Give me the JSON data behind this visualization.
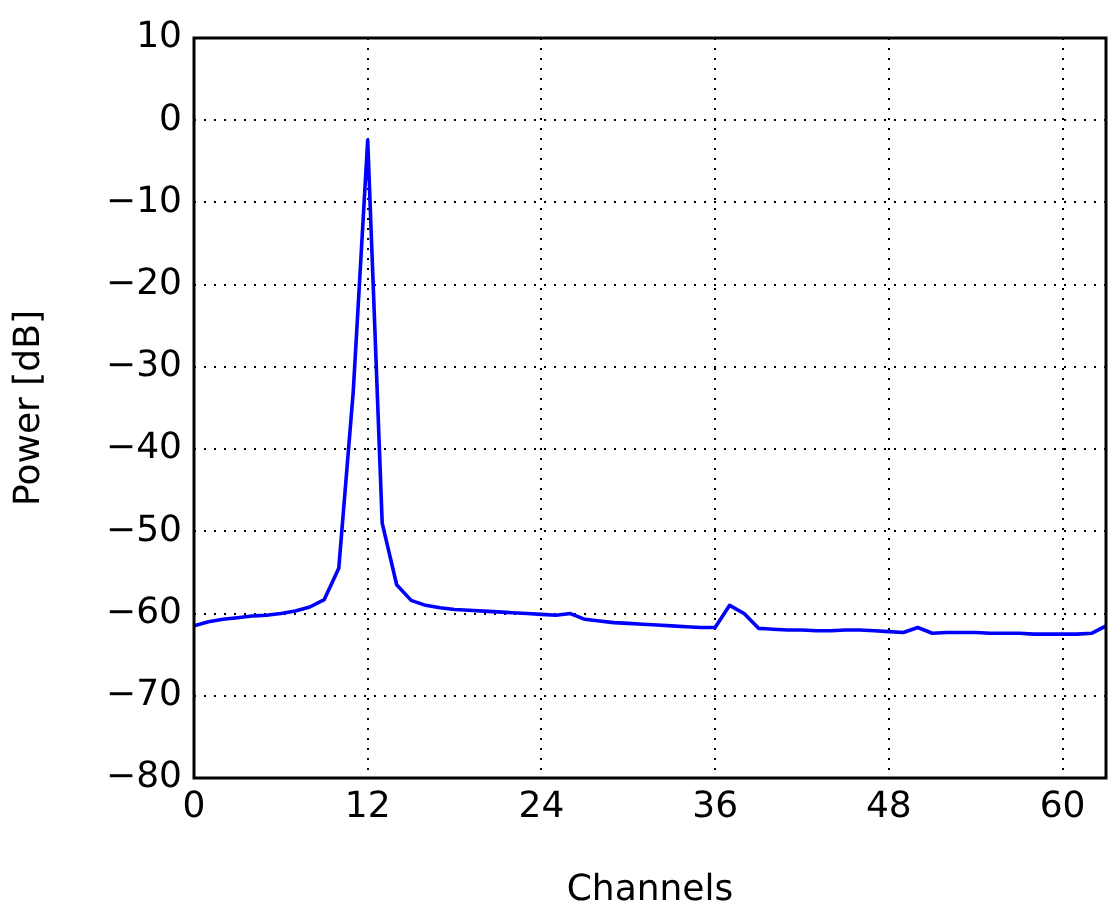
{
  "chart_data": {
    "type": "line",
    "xlabel": "Channels",
    "ylabel": "Power [dB]",
    "x": [
      0,
      1,
      2,
      3,
      4,
      5,
      6,
      7,
      8,
      9,
      10,
      11,
      12,
      13,
      14,
      15,
      16,
      17,
      18,
      19,
      20,
      21,
      22,
      23,
      24,
      25,
      26,
      27,
      28,
      29,
      30,
      31,
      32,
      33,
      34,
      35,
      36,
      37,
      38,
      39,
      40,
      41,
      42,
      43,
      44,
      45,
      46,
      47,
      48,
      49,
      50,
      51,
      52,
      53,
      54,
      55,
      56,
      57,
      58,
      59,
      60,
      61,
      62,
      63
    ],
    "series": [
      {
        "color": "#0000ff",
        "values": [
          -61.5,
          -61.0,
          -60.7,
          -60.5,
          -60.3,
          -60.2,
          -60.0,
          -59.7,
          -59.2,
          -58.3,
          -54.5,
          -33,
          -2.4,
          -49,
          -56.5,
          -58.4,
          -59.0,
          -59.3,
          -59.5,
          -59.6,
          -59.7,
          -59.8,
          -59.9,
          -60.0,
          -60.1,
          -60.2,
          -60.0,
          -60.7,
          -60.9,
          -61.1,
          -61.2,
          -61.3,
          -61.4,
          -61.5,
          -61.6,
          -61.7,
          -61.7,
          -59.0,
          -60.0,
          -61.8,
          -61.9,
          -62.0,
          -62.0,
          -62.1,
          -62.1,
          -62.0,
          -62.0,
          -62.1,
          -62.2,
          -62.3,
          -61.7,
          -62.4,
          -62.3,
          -62.3,
          -62.3,
          -62.4,
          -62.4,
          -62.4,
          -62.5,
          -62.5,
          -62.5,
          -62.5,
          -62.4,
          -61.5
        ]
      }
    ],
    "xlim": [
      0,
      63
    ],
    "xticks": [
      0,
      12,
      24,
      36,
      48,
      60
    ],
    "ylim": [
      -80,
      10
    ],
    "yticks": [
      {
        "value": -80,
        "label": "−80"
      },
      {
        "value": -70,
        "label": "−70"
      },
      {
        "value": -60,
        "label": "−60"
      },
      {
        "value": -50,
        "label": "−50"
      },
      {
        "value": -40,
        "label": "−40"
      },
      {
        "value": -30,
        "label": "−30"
      },
      {
        "value": -20,
        "label": "−20"
      },
      {
        "value": -10,
        "label": "−10"
      },
      {
        "value": 0,
        "label": "0"
      },
      {
        "value": 10,
        "label": "10"
      }
    ],
    "grid": true,
    "legend": false,
    "marker": "none",
    "line_style": "solid"
  }
}
